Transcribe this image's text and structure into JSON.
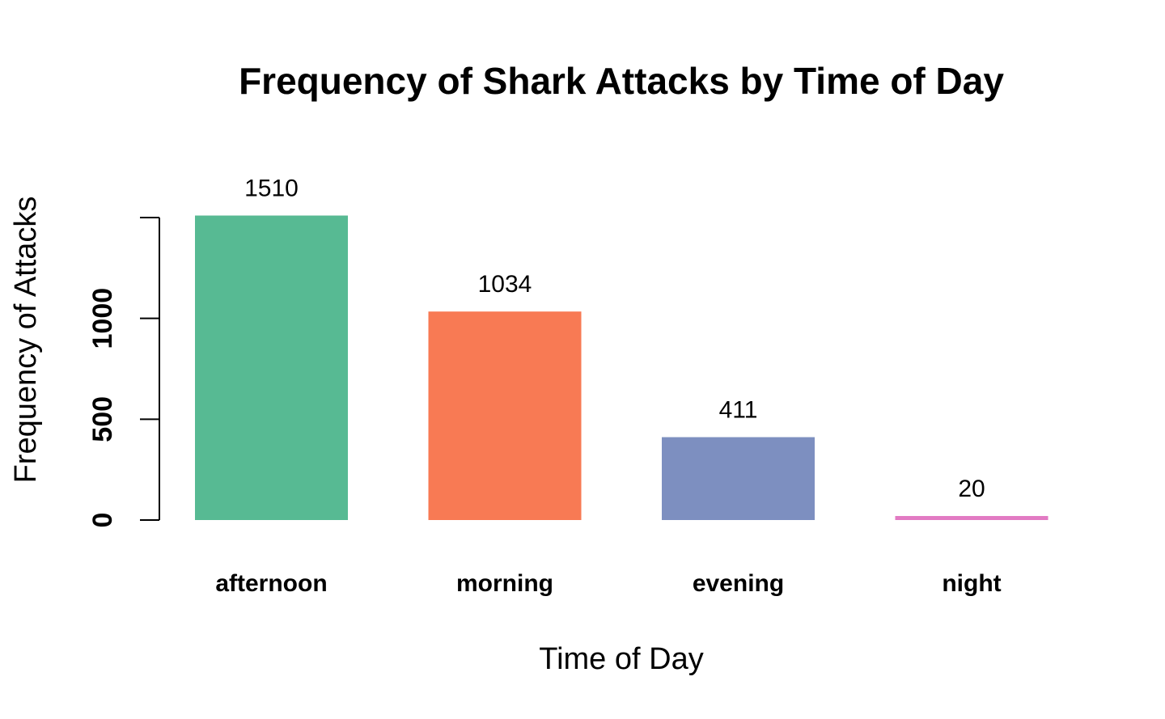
{
  "chart_data": {
    "type": "bar",
    "title": "Frequency of Shark Attacks by Time of Day",
    "xlabel": "Time of Day",
    "ylabel": "Frequency of Attacks",
    "categories": [
      "afternoon",
      "morning",
      "evening",
      "night"
    ],
    "values": [
      1510,
      1034,
      411,
      20
    ],
    "data_labels": [
      "1510",
      "1034",
      "411",
      "20"
    ],
    "colors": [
      "#57ba93",
      "#f87a54",
      "#7d8fc0",
      "#e27ac3"
    ],
    "yticks": [
      0,
      500,
      1000
    ],
    "ytick_labels": [
      "0",
      "500",
      "1000"
    ],
    "yaxis_extent": [
      0,
      1500
    ],
    "grid": false,
    "legend": "none"
  }
}
